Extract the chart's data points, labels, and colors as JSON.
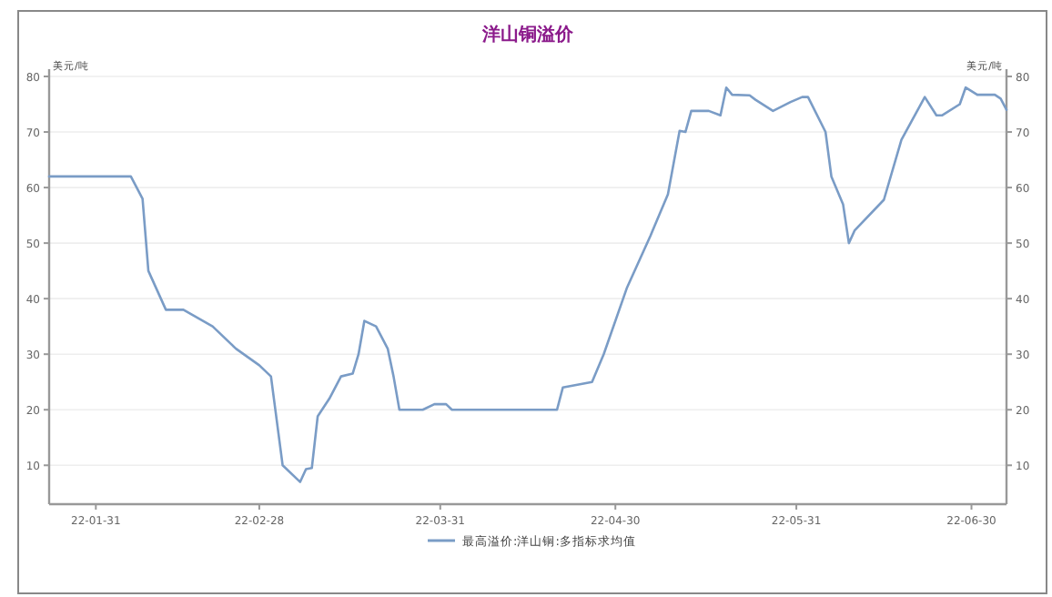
{
  "chart_data": {
    "type": "line",
    "title": "洋山铜溢价",
    "ylabel": "美元/吨",
    "y2label": "美元/吨",
    "x": [
      "--01-23",
      "--02-06",
      "--02-08",
      "--02-09",
      "--02-12",
      "--02-15",
      "--02-20",
      "--02-24",
      "--02-28",
      "--03-02",
      "--03-04",
      "--03-07",
      "--03-08",
      "--03-09",
      "--03-10",
      "--03-12",
      "--03-14",
      "--03-16",
      "--03-17",
      "--03-18",
      "--03-20",
      "--03-22",
      "--03-23",
      "--03-24",
      "--03-28",
      "--03-30",
      "--04-01",
      "--04-02",
      "--04-20",
      "--04-21",
      "--04-26",
      "--04-28",
      "--05-02",
      "--05-06",
      "--05-09",
      "--05-11",
      "--05-12",
      "--05-13",
      "--05-16",
      "--05-18",
      "--05-19",
      "--05-20",
      "--05-23",
      "--05-24",
      "--05-27",
      "--05-30",
      "--06-01",
      "--06-02",
      "--06-05",
      "--06-06",
      "--06-08",
      "--06-09",
      "--06-10",
      "--06-15",
      "--06-18",
      "--06-22",
      "--06-24",
      "--06-25",
      "--06-28",
      "--06-29",
      "--07-01",
      "--07-04",
      "--07-05",
      "--07-06"
    ],
    "series": [
      {
        "name": "最高溢价:洋山铜:多指标求均值",
        "color": "#7a9cc6",
        "values": [
          62,
          62,
          58,
          45,
          38,
          38,
          35,
          31,
          28,
          26,
          10,
          7,
          9.3,
          9.5,
          18.8,
          22,
          26,
          26.5,
          30,
          36,
          35,
          31,
          26,
          20,
          20,
          21,
          21,
          20,
          20,
          24,
          25,
          30,
          42,
          51.3,
          58.8,
          70.2,
          70,
          73.8,
          73.8,
          73,
          78,
          76.7,
          76.6,
          75.8,
          73.8,
          75.4,
          76.3,
          76.3,
          70,
          62,
          57,
          50,
          52.3,
          57.8,
          68.6,
          76.3,
          73,
          73,
          75,
          78,
          76.7,
          76.7,
          76,
          74
        ]
      }
    ],
    "xlim": [
      "--01-23",
      "--07-06"
    ],
    "xticks": [
      {
        "value": "--01-31",
        "label": "22-01-31"
      },
      {
        "value": "--02-28",
        "label": "22-02-28"
      },
      {
        "value": "--03-31",
        "label": "22-03-31"
      },
      {
        "value": "--04-30",
        "label": "22-04-30"
      },
      {
        "value": "--05-31",
        "label": "22-05-31"
      },
      {
        "value": "--06-30",
        "label": "22-06-30"
      }
    ],
    "ylim": [
      3,
      80
    ],
    "yticks": [
      10,
      20,
      30,
      40,
      50,
      60,
      70,
      80
    ],
    "y2lim": [
      3,
      80
    ],
    "y2ticks": [
      10,
      20,
      30,
      40,
      50,
      60,
      70,
      80
    ],
    "grid": "y",
    "legend": "bottom"
  }
}
